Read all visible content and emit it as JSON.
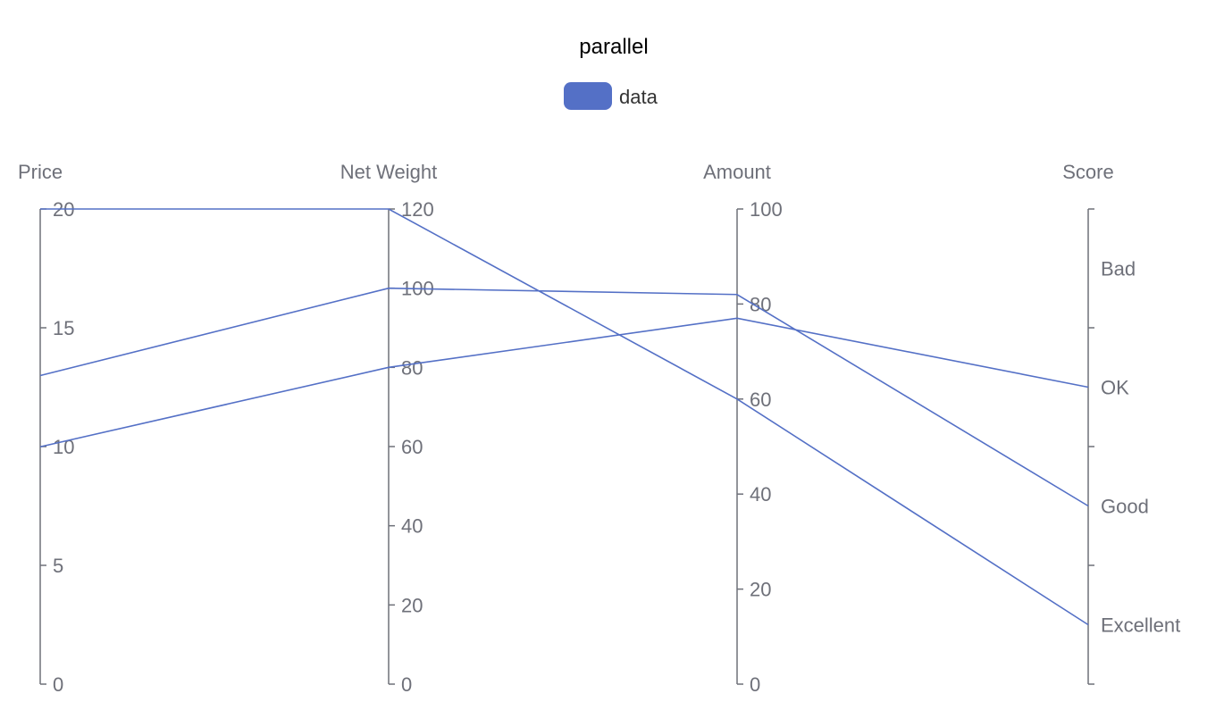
{
  "chart_data": {
    "type": "parallel",
    "title": "parallel",
    "legend": [
      {
        "name": "data",
        "color": "#5470c6"
      }
    ],
    "axes": [
      {
        "name": "Price",
        "type": "value",
        "min": 0,
        "max": 20,
        "ticks": [
          0,
          5,
          10,
          15,
          20
        ]
      },
      {
        "name": "Net Weight",
        "type": "value",
        "min": 0,
        "max": 120,
        "ticks": [
          0,
          20,
          40,
          60,
          80,
          100,
          120
        ]
      },
      {
        "name": "Amount",
        "type": "value",
        "min": 0,
        "max": 100,
        "ticks": [
          0,
          20,
          40,
          60,
          80,
          100
        ]
      },
      {
        "name": "Score",
        "type": "category",
        "categories": [
          "Excellent",
          "Good",
          "OK",
          "Bad"
        ]
      }
    ],
    "series": [
      {
        "name": "data",
        "color": "#5470c6",
        "rows": [
          [
            12.99,
            100,
            82,
            "Good"
          ],
          [
            9.99,
            80,
            77,
            "OK"
          ],
          [
            20,
            120,
            60,
            "Excellent"
          ]
        ]
      }
    ]
  }
}
